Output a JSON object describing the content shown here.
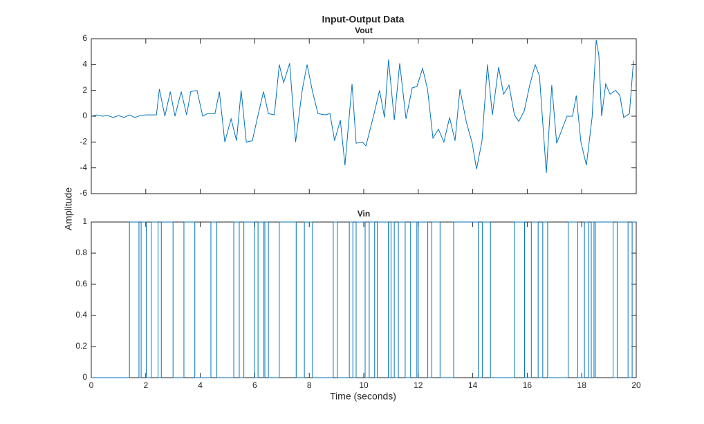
{
  "title": "Input-Output Data",
  "ylabel": "Amplitude",
  "xlabel": "Time (seconds)",
  "chart_data": [
    {
      "type": "line",
      "title": "Vout",
      "color": "#0072bd",
      "x": [
        0,
        0.2,
        0.4,
        0.6,
        0.8,
        1.0,
        1.2,
        1.4,
        1.6,
        1.8,
        2.0,
        2.2,
        2.39,
        2.5,
        2.7,
        2.9,
        3.07,
        3.3,
        3.5,
        3.65,
        3.88,
        4.09,
        4.26,
        4.54,
        4.7,
        4.9,
        5.13,
        5.33,
        5.5,
        5.69,
        5.91,
        6.1,
        6.32,
        6.5,
        6.72,
        6.9,
        7.06,
        7.28,
        7.5,
        7.74,
        7.92,
        8.12,
        8.32,
        8.58,
        8.76,
        8.93,
        9.14,
        9.31,
        9.57,
        9.72,
        9.95,
        10.08,
        10.38,
        10.58,
        10.76,
        10.91,
        11.12,
        11.32,
        11.55,
        11.78,
        11.95,
        12.16,
        12.34,
        12.54,
        12.74,
        12.94,
        13.15,
        13.35,
        13.53,
        13.76,
        13.98,
        14.14,
        14.34,
        14.54,
        14.72,
        14.95,
        15.13,
        15.33,
        15.53,
        15.69,
        15.89,
        16.09,
        16.29,
        16.45,
        16.7,
        16.9,
        17.08,
        17.28,
        17.46,
        17.66,
        17.8,
        17.97,
        18.17,
        18.38,
        18.53,
        18.63,
        18.73,
        18.88,
        19.04,
        19.24,
        19.4,
        19.54,
        19.75,
        19.9
      ],
      "values": [
        0,
        0.1,
        0,
        0.05,
        -0.1,
        0.05,
        -0.1,
        0.1,
        -0.1,
        0.05,
        0.1,
        0.1,
        0.1,
        2.1,
        0,
        1.9,
        0,
        1.9,
        0.1,
        1.9,
        2.0,
        0,
        0.2,
        0.2,
        1.9,
        -2.0,
        -0.2,
        -1.9,
        2.0,
        -2.0,
        -1.9,
        -0.1,
        1.9,
        0.2,
        0.1,
        4.0,
        2.6,
        4.1,
        -2.0,
        2.0,
        4.0,
        1.9,
        0.2,
        0.1,
        0.2,
        -1.9,
        -0.3,
        -3.8,
        2.5,
        -2.1,
        -2.0,
        -2.3,
        0.2,
        2.0,
        -0.1,
        4.4,
        -0.3,
        4.1,
        -0.2,
        2.2,
        2.3,
        3.7,
        2.1,
        -1.7,
        -1.0,
        -2.0,
        -0.1,
        -1.9,
        2.1,
        -0.4,
        -2.1,
        -4.1,
        -1.9,
        4.0,
        0.1,
        3.8,
        1.7,
        2.4,
        0.1,
        -0.4,
        0.4,
        2.4,
        4.0,
        3.1,
        -4.4,
        2.4,
        -2.1,
        -1.0,
        0,
        0,
        1.6,
        -2.0,
        -3.8,
        -0.1,
        5.9,
        4.7,
        0,
        2.5,
        1.7,
        2.0,
        1.6,
        -0.1,
        0.2,
        4.3
      ],
      "xlim": [
        0,
        20
      ],
      "xticks": [
        0,
        2,
        4,
        6,
        8,
        10,
        12,
        14,
        16,
        18,
        20
      ],
      "ylim": [
        -6,
        6
      ],
      "yticks": [
        -6,
        -4,
        -2,
        0,
        2,
        4,
        6
      ]
    },
    {
      "type": "stairs",
      "title": "Vin",
      "color": "#0072bd",
      "x": [
        0,
        1.4,
        1.75,
        1.83,
        2.02,
        2.2,
        2.45,
        2.57,
        3.0,
        3.4,
        3.8,
        4.39,
        4.6,
        5.23,
        5.43,
        5.6,
        5.99,
        6.12,
        6.32,
        6.37,
        6.5,
        6.9,
        7.52,
        7.82,
        8.12,
        8.88,
        9.03,
        9.47,
        9.6,
        9.72,
        10.05,
        10.2,
        10.4,
        10.5,
        10.9,
        11.0,
        11.12,
        11.27,
        11.52,
        11.72,
        11.95,
        12.0,
        12.35,
        12.5,
        12.8,
        13.3,
        14.2,
        14.35,
        14.65,
        15.53,
        15.9,
        16.15,
        16.4,
        16.57,
        16.75,
        17.5,
        17.85,
        18.1,
        18.25,
        18.35,
        18.45,
        18.5,
        19.15,
        19.3,
        19.7,
        19.85
      ],
      "values": [
        0,
        1,
        0,
        1,
        0,
        1,
        0,
        1,
        0,
        1,
        0,
        1,
        0,
        1,
        0,
        1,
        0,
        1,
        0,
        1,
        0,
        1,
        0,
        1,
        0,
        1,
        0,
        1,
        0,
        1,
        0,
        1,
        0,
        1,
        0,
        1,
        0,
        1,
        0,
        1,
        0,
        1,
        0,
        1,
        0,
        1,
        0,
        1,
        0,
        1,
        0,
        1,
        0,
        1,
        0,
        1,
        0,
        1,
        0,
        1,
        0,
        1,
        0,
        1,
        0,
        1
      ],
      "xlim": [
        0,
        20
      ],
      "xticks": [
        0,
        2,
        4,
        6,
        8,
        10,
        12,
        14,
        16,
        18,
        20
      ],
      "ylim": [
        0,
        1
      ],
      "yticks": [
        0,
        0.2,
        0.4,
        0.6,
        0.8,
        1
      ]
    }
  ]
}
